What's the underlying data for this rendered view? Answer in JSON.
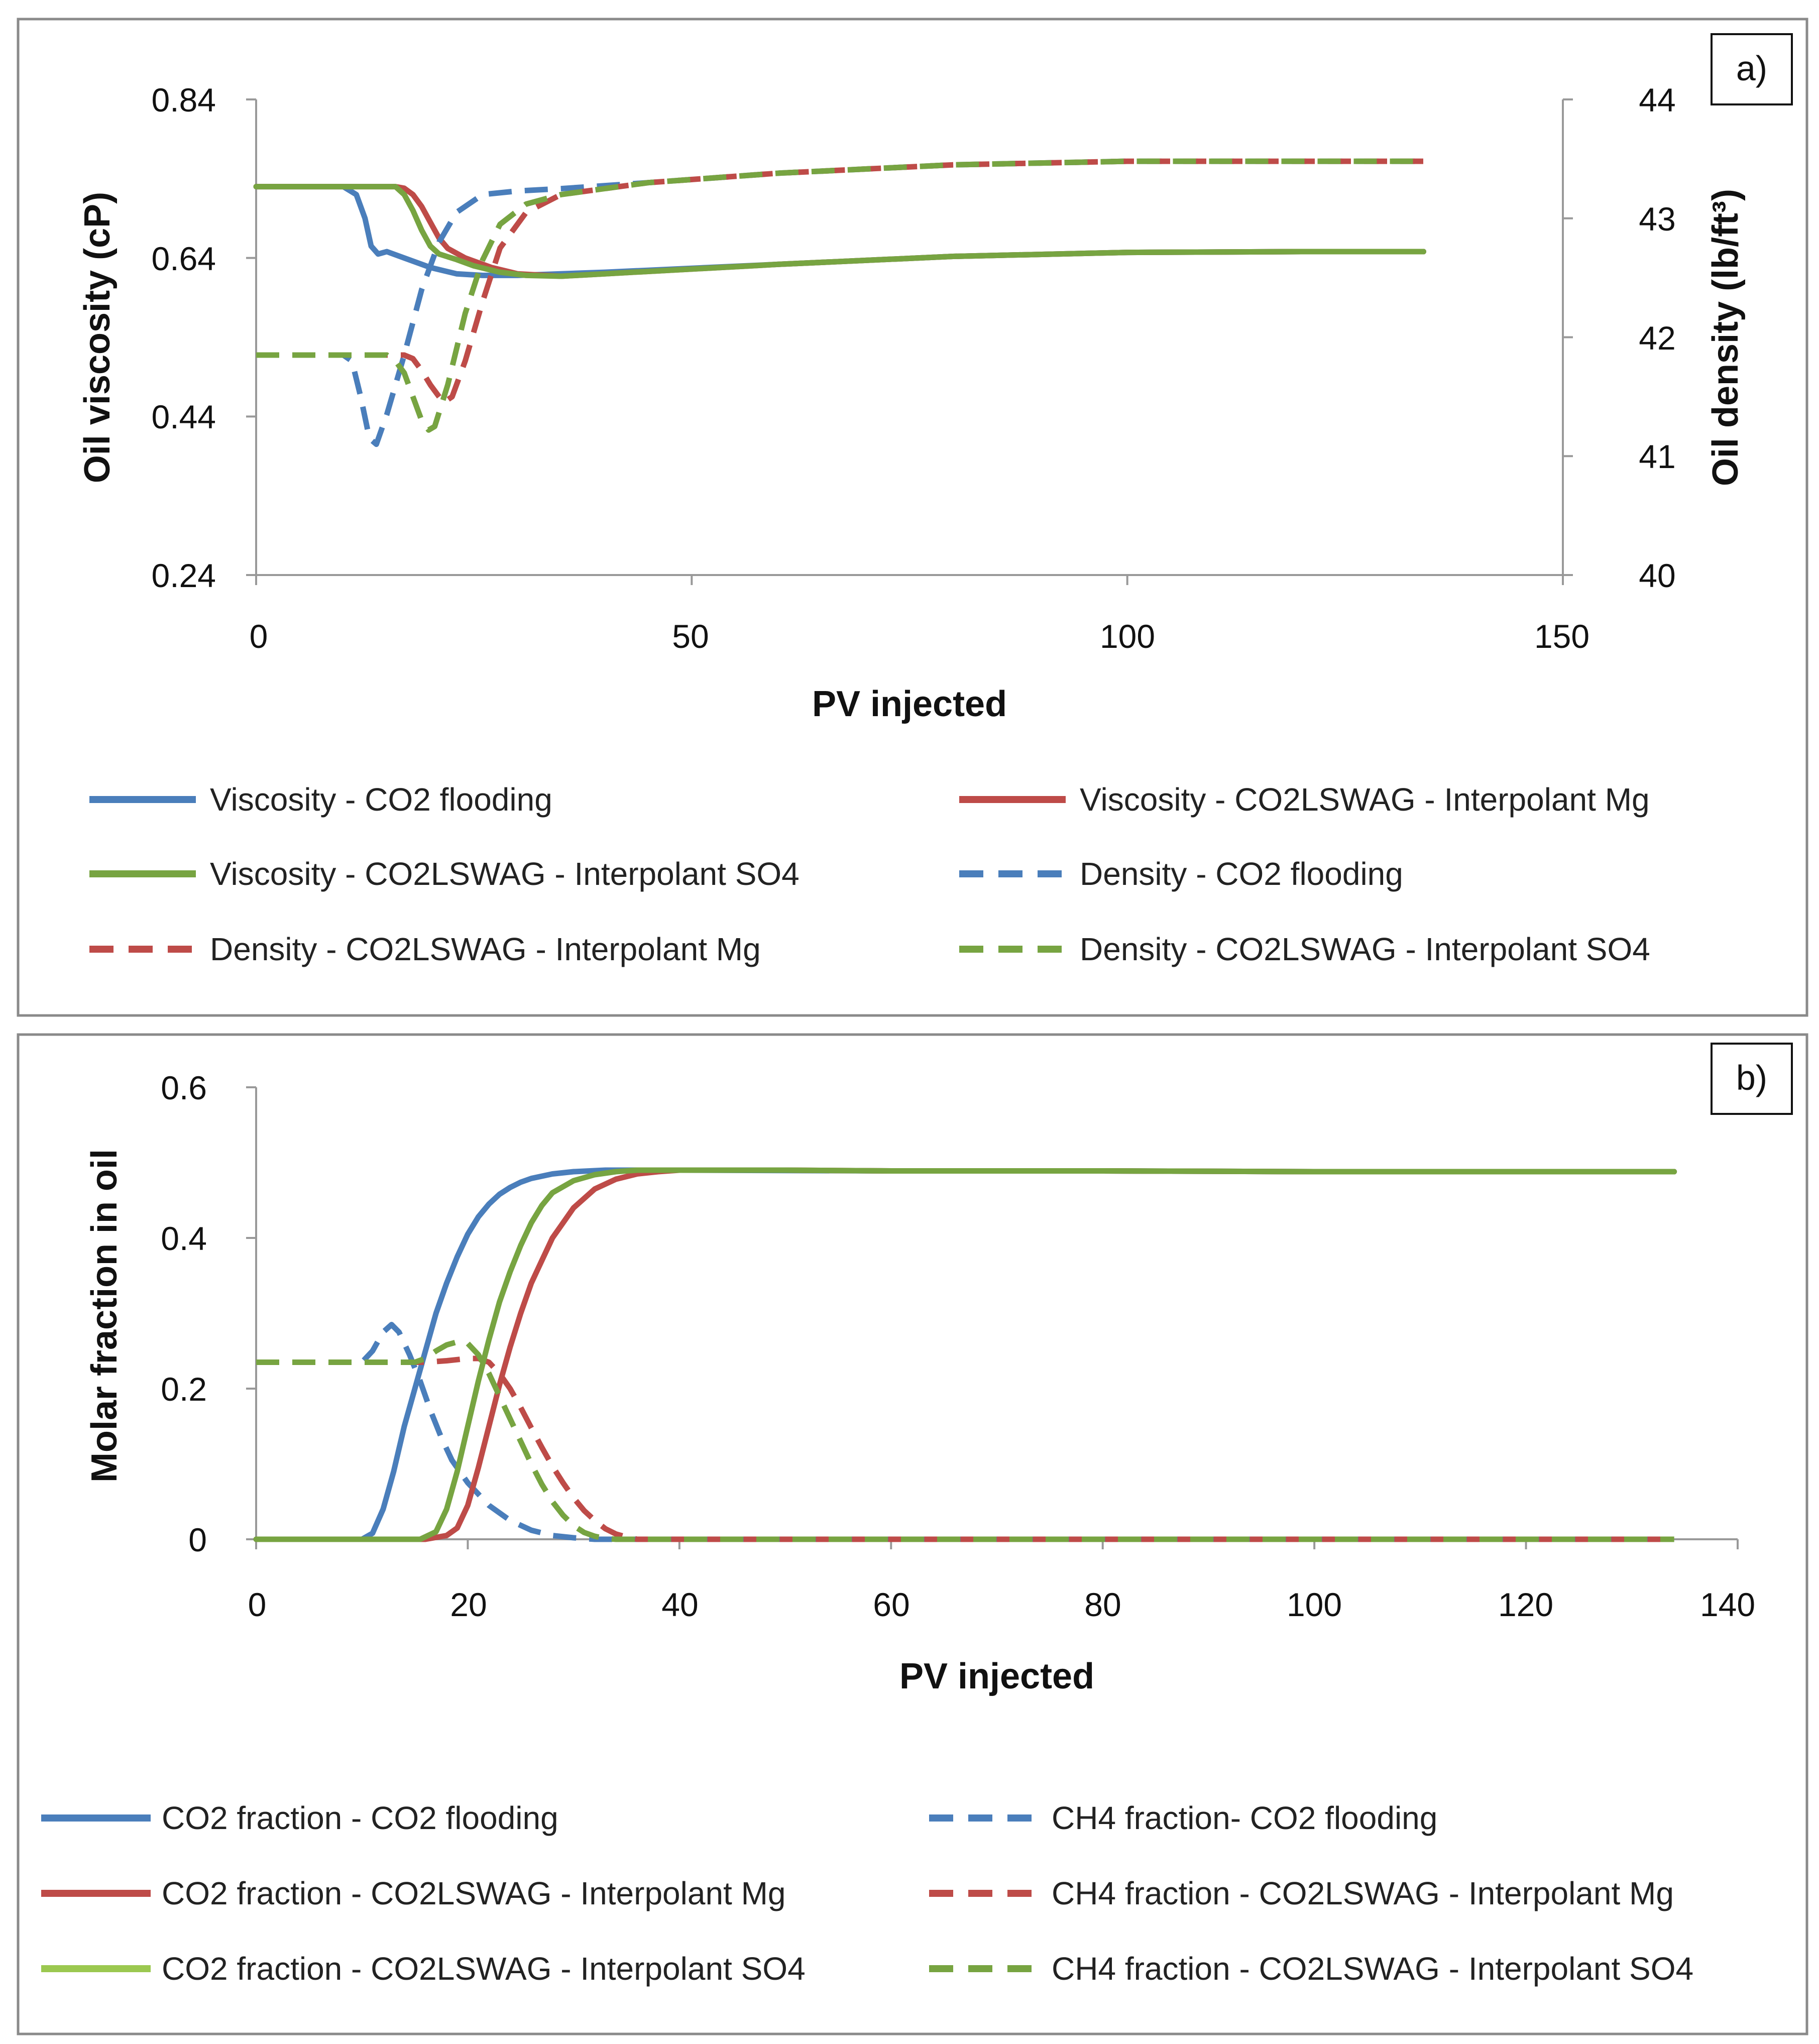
{
  "chart_data": [
    {
      "type": "line",
      "panel_label": "a)",
      "xlabel": "PV injected",
      "ylabel": "Oil viscosity (cP)",
      "y2label": "Oil density (lb/ft³)",
      "xlim": [
        0,
        150
      ],
      "ylim": [
        0.24,
        0.84
      ],
      "y2lim": [
        40,
        44
      ],
      "x_ticks": [
        "0",
        "50",
        "100",
        "150"
      ],
      "y_ticks": [
        "0.24",
        "0.44",
        "0.64",
        "0.84"
      ],
      "y2_ticks": [
        "40",
        "41",
        "42",
        "43",
        "44"
      ],
      "legend_position": "bottom",
      "series": [
        {
          "name": "Viscosity - CO2 flooding",
          "axis": "left",
          "color": "#4a7ebb",
          "dash": false,
          "x": [
            0,
            10,
            11.5,
            12.5,
            13.2,
            14,
            15,
            17,
            20,
            23,
            26,
            30,
            40,
            60,
            80,
            100,
            120,
            134
          ],
          "y": [
            0.73,
            0.73,
            0.72,
            0.69,
            0.655,
            0.645,
            0.648,
            0.64,
            0.628,
            0.62,
            0.618,
            0.618,
            0.622,
            0.632,
            0.642,
            0.647,
            0.648,
            0.648
          ]
        },
        {
          "name": "Viscosity - CO2LSWAG - Interpolant Mg",
          "axis": "left",
          "color": "#be4b48",
          "dash": false,
          "x": [
            0,
            16,
            17,
            18,
            19,
            20,
            21,
            22,
            24,
            27,
            30,
            35,
            40,
            60,
            80,
            100,
            120,
            134
          ],
          "y": [
            0.73,
            0.73,
            0.728,
            0.72,
            0.705,
            0.685,
            0.665,
            0.652,
            0.64,
            0.628,
            0.62,
            0.617,
            0.62,
            0.632,
            0.642,
            0.647,
            0.648,
            0.648
          ]
        },
        {
          "name": "Viscosity - CO2LSWAG - Interpolant SO4",
          "axis": "left",
          "color": "#77a441",
          "dash": false,
          "x": [
            0,
            16,
            17,
            18,
            19,
            20,
            21,
            23,
            25,
            28,
            31,
            35,
            40,
            60,
            80,
            100,
            120,
            134
          ],
          "y": [
            0.73,
            0.73,
            0.72,
            0.7,
            0.675,
            0.655,
            0.645,
            0.638,
            0.63,
            0.622,
            0.618,
            0.617,
            0.62,
            0.632,
            0.642,
            0.647,
            0.648,
            0.648
          ]
        },
        {
          "name": "Density - CO2 flooding",
          "axis": "right",
          "color": "#4a7ebb",
          "dash": true,
          "x": [
            0,
            10,
            11,
            12,
            13,
            13.8,
            15,
            17,
            19,
            21,
            23,
            26,
            30,
            35,
            45,
            60,
            80,
            100,
            120,
            134
          ],
          "y": [
            41.85,
            41.85,
            41.8,
            41.5,
            41.15,
            41.1,
            41.35,
            41.85,
            42.4,
            42.8,
            43.05,
            43.2,
            43.23,
            43.25,
            43.3,
            43.38,
            43.45,
            43.48,
            43.48,
            43.48
          ]
        },
        {
          "name": "Density - CO2LSWAG - Interpolant Mg",
          "axis": "right",
          "color": "#be4b48",
          "dash": true,
          "x": [
            0,
            16,
            17,
            18,
            19,
            20,
            21,
            21.5,
            22.5,
            24,
            26,
            28,
            31,
            35,
            45,
            60,
            80,
            100,
            120,
            134
          ],
          "y": [
            41.85,
            41.85,
            41.85,
            41.82,
            41.72,
            41.6,
            41.5,
            41.45,
            41.5,
            41.8,
            42.3,
            42.75,
            43.05,
            43.2,
            43.3,
            43.38,
            43.45,
            43.48,
            43.48,
            43.48
          ]
        },
        {
          "name": "Density - CO2LSWAG - Interpolant SO4",
          "axis": "right",
          "color": "#77a441",
          "dash": true,
          "x": [
            0,
            15,
            16,
            17,
            18,
            19,
            19.8,
            20.5,
            22,
            24,
            26,
            28,
            31,
            35,
            45,
            60,
            80,
            100,
            120,
            134
          ],
          "y": [
            41.85,
            41.85,
            41.8,
            41.7,
            41.5,
            41.3,
            41.22,
            41.25,
            41.6,
            42.2,
            42.65,
            42.95,
            43.12,
            43.2,
            43.3,
            43.38,
            43.45,
            43.48,
            43.48,
            43.48
          ]
        }
      ]
    },
    {
      "type": "line",
      "panel_label": "b)",
      "xlabel": "PV injected",
      "ylabel": "Molar fraction in oil",
      "xlim": [
        0,
        140
      ],
      "ylim": [
        0,
        0.6
      ],
      "x_ticks": [
        "0",
        "20",
        "40",
        "60",
        "80",
        "100",
        "120",
        "140"
      ],
      "y_ticks": [
        "0",
        "0.2",
        "0.4",
        "0.6"
      ],
      "legend_position": "bottom",
      "series": [
        {
          "name": "CO2 fraction - CO2 flooding",
          "color": "#4a7ebb",
          "dash": false,
          "x": [
            0,
            10,
            11,
            12,
            13,
            14,
            15,
            16,
            17,
            18,
            19,
            20,
            21,
            22,
            23,
            24,
            25,
            26,
            28,
            30,
            33,
            36,
            40,
            60,
            80,
            100,
            120,
            134
          ],
          "y": [
            0,
            0,
            0.008,
            0.04,
            0.09,
            0.15,
            0.2,
            0.25,
            0.3,
            0.34,
            0.375,
            0.405,
            0.428,
            0.445,
            0.458,
            0.467,
            0.474,
            0.479,
            0.485,
            0.488,
            0.49,
            0.49,
            0.49,
            0.489,
            0.489,
            0.488,
            0.488,
            0.488
          ]
        },
        {
          "name": "CH4 fraction- CO2 flooding",
          "color": "#4a7ebb",
          "dash": true,
          "x": [
            0,
            10,
            11,
            12,
            12.8,
            13.5,
            14.5,
            15.5,
            16.5,
            17.5,
            18.5,
            20,
            22,
            24,
            26,
            28,
            30,
            32,
            34,
            40,
            60,
            80,
            100,
            120,
            134
          ],
          "y": [
            0.235,
            0.235,
            0.25,
            0.275,
            0.285,
            0.275,
            0.245,
            0.21,
            0.17,
            0.135,
            0.105,
            0.075,
            0.045,
            0.025,
            0.012,
            0.005,
            0.002,
            0,
            0,
            0,
            0,
            0,
            0,
            0,
            0
          ]
        },
        {
          "name": "CO2 fraction - CO2LSWAG - Interpolant Mg",
          "color": "#be4b48",
          "dash": false,
          "x": [
            0,
            16,
            18,
            19,
            20,
            21,
            22,
            23,
            24,
            25,
            26,
            27,
            28,
            29,
            30,
            32,
            34,
            36,
            38,
            40,
            50,
            60,
            80,
            100,
            120,
            134
          ],
          "y": [
            0,
            0,
            0.005,
            0.015,
            0.045,
            0.095,
            0.15,
            0.205,
            0.255,
            0.3,
            0.34,
            0.37,
            0.4,
            0.42,
            0.44,
            0.465,
            0.478,
            0.485,
            0.488,
            0.49,
            0.49,
            0.489,
            0.489,
            0.488,
            0.488,
            0.488
          ]
        },
        {
          "name": "CH4 fraction - CO2LSWAG - Interpolant Mg",
          "color": "#be4b48",
          "dash": true,
          "x": [
            0,
            16,
            18,
            20,
            21,
            22,
            23,
            24,
            25,
            26,
            27,
            28,
            29,
            30,
            31,
            32,
            33,
            34,
            35,
            36,
            40,
            60,
            80,
            100,
            120,
            134
          ],
          "y": [
            0.235,
            0.235,
            0.237,
            0.24,
            0.24,
            0.235,
            0.22,
            0.2,
            0.175,
            0.148,
            0.122,
            0.097,
            0.075,
            0.055,
            0.038,
            0.025,
            0.014,
            0.007,
            0.003,
            0,
            0,
            0,
            0,
            0,
            0,
            0
          ]
        },
        {
          "name": "CO2 fraction - CO2LSWAG - Interpolant SO4",
          "color": "#77a441",
          "dash": false,
          "x": [
            0,
            15.5,
            17,
            18,
            19,
            20,
            21,
            22,
            23,
            24,
            25,
            26,
            27,
            28,
            30,
            32,
            34,
            36,
            40,
            50,
            60,
            80,
            100,
            120,
            134
          ],
          "y": [
            0,
            0,
            0.01,
            0.04,
            0.09,
            0.15,
            0.21,
            0.265,
            0.315,
            0.355,
            0.39,
            0.42,
            0.443,
            0.46,
            0.476,
            0.484,
            0.488,
            0.49,
            0.49,
            0.49,
            0.489,
            0.489,
            0.488,
            0.488,
            0.488
          ]
        },
        {
          "name": "CH4 fraction - CO2LSWAG - Interpolant SO4",
          "color": "#77a441",
          "dash": true,
          "x": [
            0,
            15,
            16,
            17,
            18,
            19,
            20,
            21,
            22,
            23,
            24,
            25,
            26,
            27,
            28,
            29,
            30,
            31,
            32,
            33,
            34,
            40,
            60,
            80,
            100,
            120,
            134
          ],
          "y": [
            0.235,
            0.235,
            0.24,
            0.25,
            0.258,
            0.262,
            0.26,
            0.245,
            0.22,
            0.19,
            0.16,
            0.13,
            0.1,
            0.073,
            0.05,
            0.032,
            0.018,
            0.009,
            0.004,
            0.001,
            0,
            0,
            0,
            0,
            0,
            0,
            0
          ]
        }
      ]
    }
  ]
}
